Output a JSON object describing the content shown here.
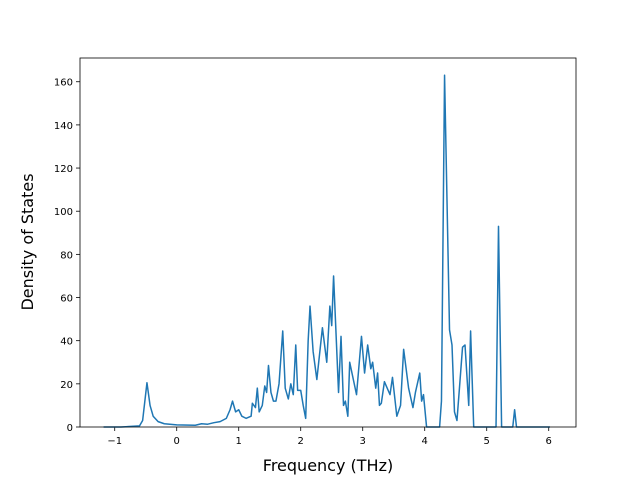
{
  "chart_data": {
    "type": "line",
    "xlabel": "Frequency (THz)",
    "ylabel": "Density of States",
    "xlim": [
      -1.56,
      6.44
    ],
    "ylim": [
      0,
      171
    ],
    "xticks": [
      {
        "value": -1,
        "label": "−1"
      },
      0,
      1,
      2,
      3,
      4,
      5,
      6
    ],
    "yticks": [
      0,
      20,
      40,
      60,
      80,
      100,
      120,
      140,
      160
    ],
    "series": [
      {
        "color": "#1f77b4",
        "x": [
          -1.18,
          -0.9,
          -0.6,
          -0.55,
          -0.48,
          -0.43,
          -0.38,
          -0.3,
          -0.2,
          0,
          0.3,
          0.4,
          0.5,
          0.6,
          0.7,
          0.8,
          0.86,
          0.9,
          0.95,
          1.0,
          1.05,
          1.12,
          1.2,
          1.22,
          1.27,
          1.3,
          1.33,
          1.38,
          1.42,
          1.45,
          1.48,
          1.52,
          1.56,
          1.6,
          1.65,
          1.71,
          1.75,
          1.8,
          1.84,
          1.88,
          1.92,
          1.95,
          2.0,
          2.04,
          2.08,
          2.12,
          2.15,
          2.2,
          2.26,
          2.35,
          2.42,
          2.47,
          2.5,
          2.53,
          2.61,
          2.65,
          2.69,
          2.72,
          2.76,
          2.79,
          2.9,
          2.98,
          3.03,
          3.08,
          3.13,
          3.16,
          3.21,
          3.24,
          3.27,
          3.3,
          3.35,
          3.44,
          3.48,
          3.55,
          3.61,
          3.66,
          3.74,
          3.81,
          3.85,
          3.92,
          3.95,
          3.98,
          4.03,
          4.24,
          4.27,
          4.32,
          4.4,
          4.44,
          4.48,
          4.52,
          4.56,
          4.61,
          4.65,
          4.71,
          4.74,
          4.79,
          5.15,
          5.19,
          5.24,
          5.42,
          5.45,
          5.48,
          6.02
        ],
        "values": [
          0,
          0,
          0.5,
          3,
          20.5,
          10,
          5,
          2.5,
          1.5,
          1,
          0.8,
          1.5,
          1.3,
          2,
          2.5,
          4,
          8,
          12,
          7,
          8,
          5,
          4,
          5,
          11,
          9,
          18,
          7,
          10,
          19,
          16,
          28.5,
          16,
          12,
          12,
          20,
          44.5,
          18,
          13,
          20,
          15,
          38,
          17,
          17,
          10,
          4,
          40,
          56,
          35,
          22,
          46,
          30,
          56,
          47,
          70,
          16,
          42,
          10,
          12,
          5,
          30,
          15,
          42,
          25,
          38,
          27,
          30,
          18,
          25,
          10,
          11,
          21,
          15,
          23,
          5,
          10,
          36,
          18,
          9,
          16,
          25,
          12,
          15,
          0,
          0,
          12,
          163,
          45,
          38,
          7,
          3,
          18,
          37,
          38,
          10,
          44.5,
          0,
          0,
          93,
          0,
          0,
          8,
          0,
          0
        ]
      }
    ]
  }
}
